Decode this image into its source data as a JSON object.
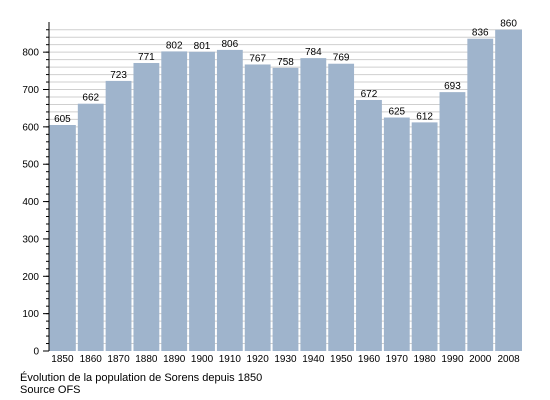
{
  "caption": {
    "line1": "Évolution de la population de Sorens depuis 1850",
    "line2": "Source OFS"
  },
  "chart_data": {
    "type": "bar",
    "title": "",
    "xlabel": "",
    "ylabel": "",
    "categories": [
      "1850",
      "1860",
      "1870",
      "1880",
      "1890",
      "1900",
      "1910",
      "1920",
      "1930",
      "1940",
      "1950",
      "1960",
      "1970",
      "1980",
      "1990",
      "2000",
      "2008"
    ],
    "values": [
      605,
      662,
      723,
      771,
      802,
      801,
      806,
      767,
      758,
      784,
      769,
      672,
      625,
      612,
      693,
      836,
      860
    ],
    "ylim": [
      0,
      870
    ],
    "yticks": [
      0,
      100,
      200,
      300,
      400,
      500,
      600,
      700,
      800
    ],
    "grid": true,
    "bar_color": "#9fb4cc",
    "grid_color": "#cfcfcf"
  }
}
